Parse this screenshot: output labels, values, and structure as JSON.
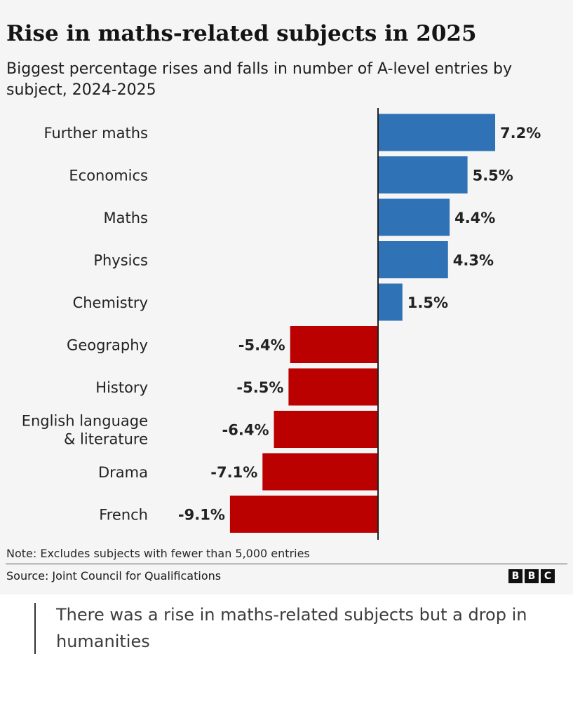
{
  "title": "Rise in maths-related subjects in 2025",
  "subtitle": "Biggest percentage rises and falls in number of A-level entries by subject, 2024-2025",
  "note": "Note: Excludes subjects with fewer than 5,000 entries",
  "source": "Source: Joint Council for Qualifications",
  "logo_letters": [
    "B",
    "B",
    "C"
  ],
  "caption": "There was a rise in maths-related subjects but a drop in humanities",
  "colors": {
    "rise": "#3072b6",
    "fall": "#bb0000",
    "axis": "#222222",
    "background": "#f5f5f5"
  },
  "chart_data": {
    "type": "bar",
    "orientation": "horizontal",
    "categories": [
      "Further maths",
      "Economics",
      "Maths",
      "Physics",
      "Chemistry",
      "Geography",
      "History",
      "English language & literature",
      "Drama",
      "French"
    ],
    "category_lines": [
      [
        "Further maths"
      ],
      [
        "Economics"
      ],
      [
        "Maths"
      ],
      [
        "Physics"
      ],
      [
        "Chemistry"
      ],
      [
        "Geography"
      ],
      [
        "History"
      ],
      [
        "English language",
        "& literature"
      ],
      [
        "Drama"
      ],
      [
        "French"
      ]
    ],
    "values": [
      7.2,
      5.5,
      4.4,
      4.3,
      1.5,
      -5.4,
      -5.5,
      -6.4,
      -7.1,
      -9.1
    ],
    "value_labels": [
      "7.2%",
      "5.5%",
      "4.4%",
      "4.3%",
      "1.5%",
      "-5.4%",
      "-5.5%",
      "-6.4%",
      "-7.1%",
      "-9.1%"
    ],
    "xlim": [
      -9.1,
      7.2
    ],
    "grid": false,
    "legend": "none"
  }
}
